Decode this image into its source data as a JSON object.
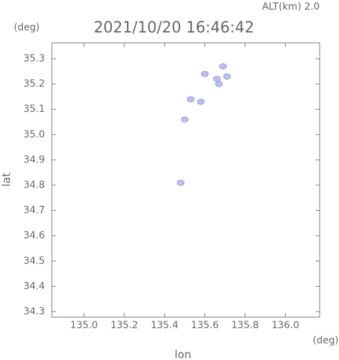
{
  "chart_data": {
    "type": "scatter",
    "title": "2021/10/20 16:46:42",
    "subtitle": "ALT(km) 2.0",
    "y_unit": "(deg)",
    "x_unit": "(deg)",
    "x_label": "lon",
    "y_label": "lat",
    "color": "#b9c0f2",
    "x": [
      135.69,
      135.6,
      135.66,
      135.71,
      135.67,
      135.53,
      135.58,
      135.5,
      135.48
    ],
    "y": [
      35.27,
      35.24,
      35.22,
      35.23,
      35.2,
      35.14,
      35.13,
      35.06,
      34.81
    ],
    "xlim": [
      134.84,
      136.17
    ],
    "ylim": [
      34.278,
      35.363
    ],
    "xticks": [
      {
        "value": 135,
        "label": "135.0"
      },
      135.2,
      135.4,
      135.6,
      135.8,
      {
        "value": 136,
        "label": "136.0"
      }
    ],
    "yticks": [
      34.3,
      34.4,
      34.5,
      34.6,
      34.7,
      34.8,
      34.9,
      {
        "value": 35,
        "label": "35.0"
      },
      35.1,
      35.2,
      35.3
    ]
  }
}
